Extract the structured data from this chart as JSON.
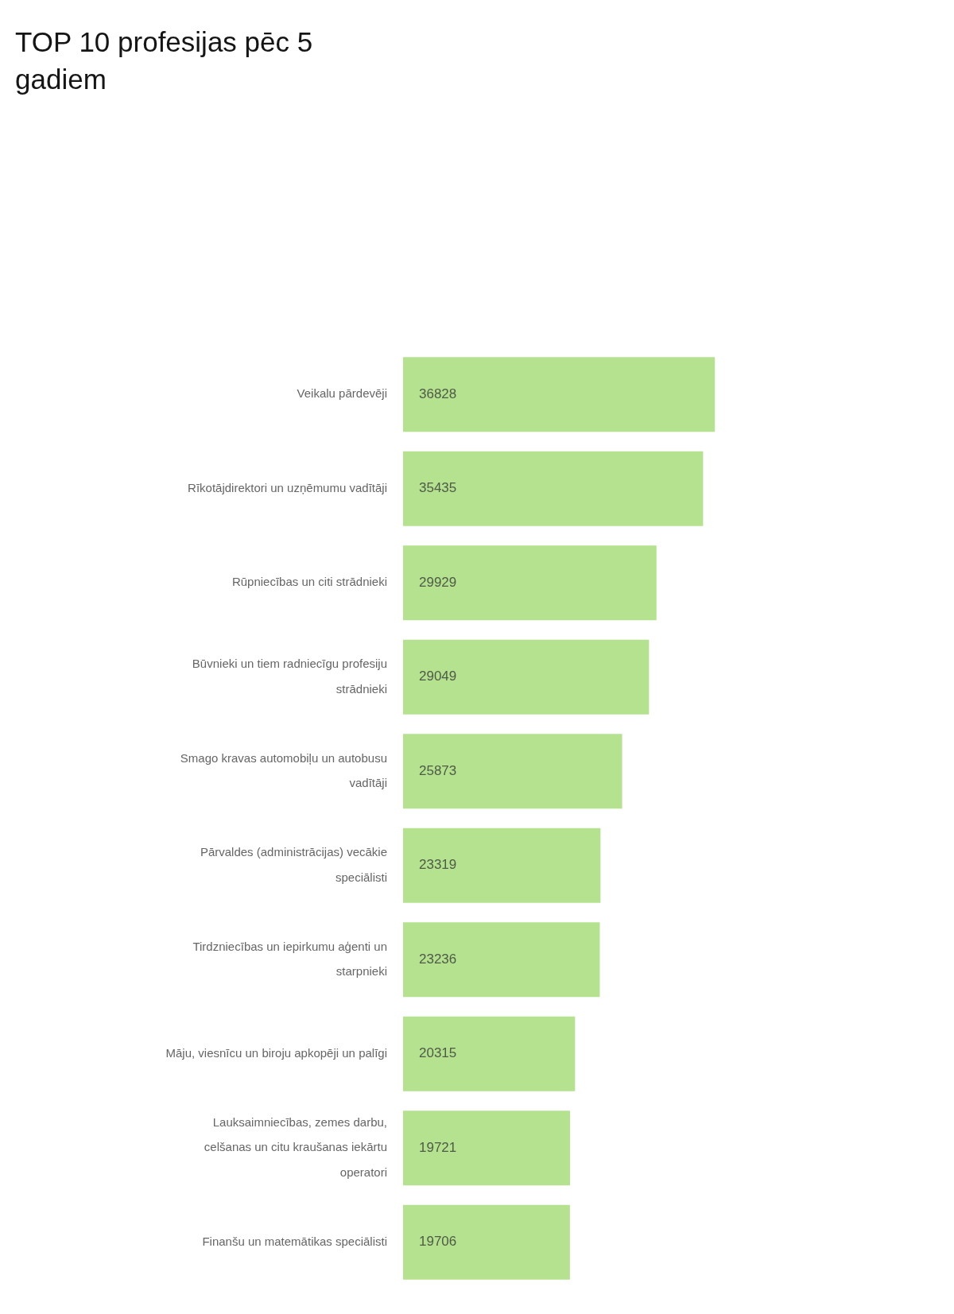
{
  "chart_data": {
    "type": "bar",
    "title": "TOP 10 profesijas pēc 5 gadiem",
    "orientation": "horizontal",
    "categories": [
      "Veikalu pārdevēji",
      "Rīkotājdirektori un uzņēmumu vadītāji",
      "Rūpniecības un citi strādnieki",
      "Būvnieki un tiem radniecīgu profesiju strādnieki",
      "Smago kravas automobiļu un autobusu vadītāji",
      "Pārvaldes (administrācijas) vecākie speciālisti",
      "Tirdzniecības un iepirkumu aģenti un starpnieki",
      "Māju, viesnīcu un biroju apkopēji un palīgi",
      "Lauksaimniecības, zemes darbu, celšanas un citu kraušanas iekārtu operatori",
      "Finanšu un matemātikas speciālisti"
    ],
    "values": [
      36828,
      35435,
      29929,
      29049,
      25873,
      23319,
      23236,
      20315,
      19721,
      19706
    ],
    "color": "#b5e28f",
    "data_labels": true,
    "tick_labels": "y"
  }
}
